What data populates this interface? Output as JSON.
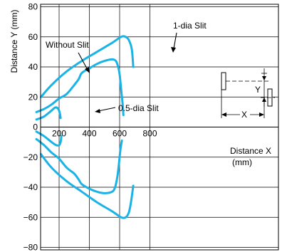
{
  "chart_data": {
    "type": "line",
    "xlabel": "Distance X (mm)",
    "xlabel_line1": "Distance X",
    "xlabel_line2": "(mm)",
    "ylabel": "Distance Y (mm)",
    "xlim": [
      0,
      800
    ],
    "ylim": [
      -80,
      80
    ],
    "x_ticks": [
      200,
      400,
      600,
      800
    ],
    "y_ticks": [
      80,
      60,
      40,
      20,
      0,
      -20,
      -40,
      -60,
      -80
    ],
    "grid": true,
    "line_color": "#1ab3e6",
    "series": [
      {
        "name": "Without Slit",
        "upper": [
          [
            80,
            20
          ],
          [
            150,
            28
          ],
          [
            250,
            37
          ],
          [
            350,
            44
          ],
          [
            450,
            50
          ],
          [
            550,
            56
          ],
          [
            610,
            60
          ],
          [
            640,
            60
          ],
          [
            660,
            58
          ],
          [
            680,
            52
          ],
          [
            690,
            40
          ]
        ],
        "lower": [
          [
            80,
            -18
          ],
          [
            150,
            -27
          ],
          [
            250,
            -36
          ],
          [
            350,
            -43
          ],
          [
            450,
            -50
          ],
          [
            550,
            -56
          ],
          [
            610,
            -60
          ],
          [
            640,
            -60
          ],
          [
            660,
            -57
          ],
          [
            675,
            -50
          ],
          [
            690,
            -39
          ]
        ]
      },
      {
        "name": "1-dia Slit",
        "upper": [
          [
            50,
            10
          ],
          [
            100,
            12
          ],
          [
            150,
            15
          ],
          [
            200,
            19
          ],
          [
            250,
            22
          ],
          [
            300,
            28
          ],
          [
            330,
            32
          ],
          [
            350,
            36
          ],
          [
            400,
            39
          ],
          [
            450,
            42
          ],
          [
            500,
            44
          ],
          [
            550,
            45
          ],
          [
            575,
            44
          ],
          [
            590,
            40
          ],
          [
            600,
            35
          ],
          [
            610,
            25
          ],
          [
            620,
            15
          ],
          [
            625,
            8
          ]
        ],
        "lower": [
          [
            50,
            -8
          ],
          [
            100,
            -12
          ],
          [
            150,
            -17
          ],
          [
            200,
            -21
          ],
          [
            250,
            -27
          ],
          [
            300,
            -31
          ],
          [
            330,
            -35
          ],
          [
            350,
            -38
          ],
          [
            400,
            -41
          ],
          [
            450,
            -43
          ],
          [
            500,
            -44
          ],
          [
            550,
            -43
          ],
          [
            570,
            -40
          ],
          [
            585,
            -33
          ],
          [
            595,
            -25
          ],
          [
            605,
            -15
          ],
          [
            615,
            -9
          ]
        ]
      },
      {
        "name": "0.5-dia Slit",
        "upper": [
          [
            50,
            5
          ],
          [
            100,
            7
          ],
          [
            150,
            11
          ],
          [
            175,
            13
          ],
          [
            195,
            12
          ],
          [
            205,
            9
          ],
          [
            210,
            6
          ]
        ],
        "lower": [
          [
            50,
            -3
          ],
          [
            100,
            -6
          ],
          [
            150,
            -10
          ],
          [
            180,
            -12
          ],
          [
            200,
            -12
          ],
          [
            210,
            -10
          ],
          [
            215,
            -6
          ]
        ]
      }
    ],
    "annotations": [
      "Without Slit",
      "1-dia Slit",
      "0.5-dia Slit"
    ],
    "diagram_labels": [
      "Y",
      "X"
    ]
  }
}
